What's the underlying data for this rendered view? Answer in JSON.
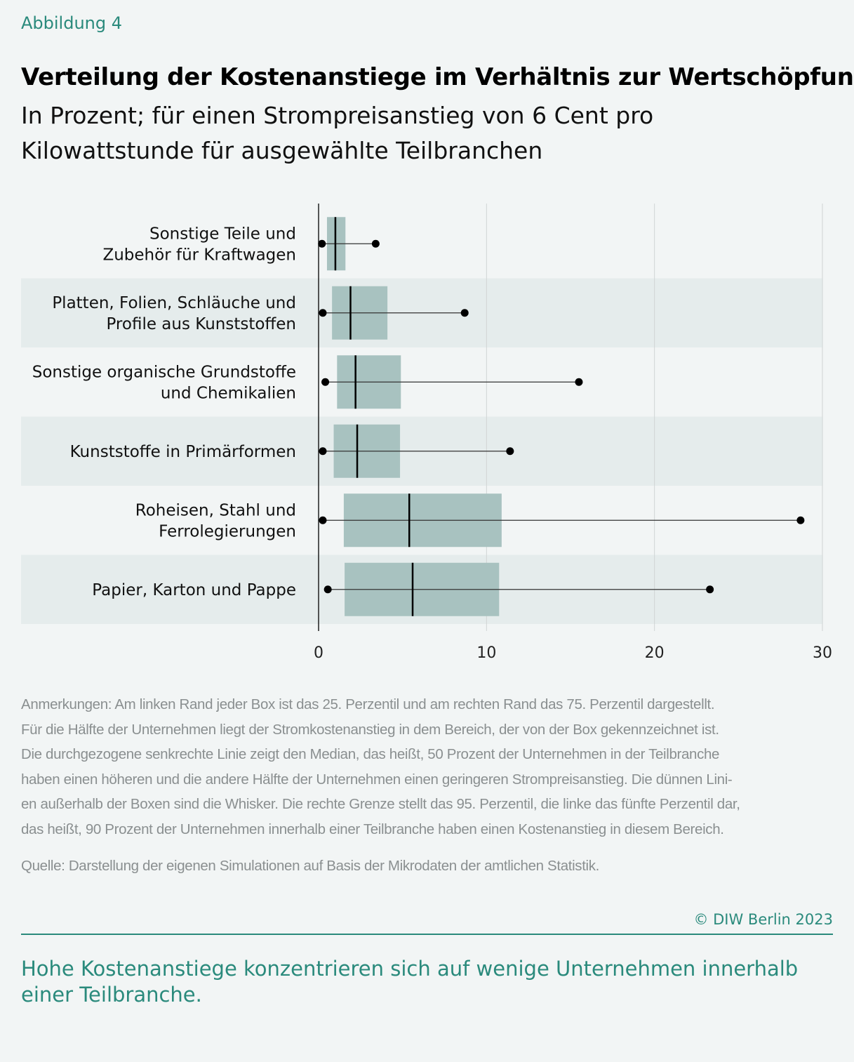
{
  "figure_label": "Abbildung 4",
  "colors": {
    "accent": "#2a8a7c",
    "box": "#a8c2c0",
    "band": "#e5ecec",
    "background": "#f2f5f5"
  },
  "chart_data": {
    "type": "boxplot",
    "title": "Verteilung der Kostenanstiege im Verhältnis zur Wertschöpfung",
    "subtitle": "In Prozent; für einen Strompreisanstieg von 6 Cent pro Kilowattstunde für ausgewählte Teilbranchen",
    "orientation": "horizontal",
    "xlim": [
      0,
      30
    ],
    "xticks": [
      "0",
      "10",
      "20",
      "30"
    ],
    "xtick_values": [
      0,
      10,
      20,
      30
    ],
    "grid": true,
    "categories": [
      [
        "Sonstige Teile und",
        "Zubehör für Kraftwagen"
      ],
      [
        "Platten, Folien, Schläuche und",
        "Profile aus Kunststoffen"
      ],
      [
        "Sonstige organische Grundstoffe",
        "und Chemikalien"
      ],
      [
        "Kunststoffe in Primärformen"
      ],
      [
        "Roheisen, Stahl und",
        "Ferrolegierungen"
      ],
      [
        "Papier, Karton und Pappe"
      ]
    ],
    "boxes": [
      {
        "p5": 0.2,
        "p25": 0.5,
        "median": 1.0,
        "p75": 1.6,
        "p95": 3.4
      },
      {
        "p5": 0.25,
        "p25": 0.8,
        "median": 1.9,
        "p75": 4.1,
        "p95": 8.7
      },
      {
        "p5": 0.4,
        "p25": 1.1,
        "median": 2.2,
        "p75": 4.9,
        "p95": 15.5
      },
      {
        "p5": 0.25,
        "p25": 0.9,
        "median": 2.3,
        "p75": 4.85,
        "p95": 11.4
      },
      {
        "p5": 0.25,
        "p25": 1.5,
        "median": 5.4,
        "p75": 10.9,
        "p95": 28.7
      },
      {
        "p5": 0.55,
        "p25": 1.55,
        "median": 5.6,
        "p75": 10.75,
        "p95": 23.3
      }
    ]
  },
  "notes": [
    "Anmerkungen: Am linken Rand jeder Box ist das 25. Perzentil und am rechten Rand das 75. Perzentil dargestellt.",
    "Für die Hälfte der Unternehmen liegt der Stromkostenanstieg in dem Bereich, der von der Box gekennzeichnet ist.",
    "Die durchgezogene senkrechte Linie zeigt den Median, das heißt, 50 Prozent der Unternehmen in der Teilbranche",
    "haben einen höheren und die andere Hälfte der Unternehmen einen geringeren Strompreisanstieg. Die dünnen Lini-",
    "en außerhalb der Boxen sind die Whisker. Die rechte Grenze stellt das 95. Perzentil, die linke das fünfte Perzentil dar,",
    "das heißt, 90 Prozent der Unternehmen innerhalb einer Teilbranche haben einen Kostenanstieg in diesem Bereich."
  ],
  "source": "Quelle: Darstellung der eigenen Simulationen auf Basis der Mikrodaten der amtlichen Statistik.",
  "copyright": "© DIW Berlin 2023",
  "takeaway": "Hohe Kostenanstiege konzentrieren sich auf wenige Unternehmen innerhalb einer Teilbranche."
}
